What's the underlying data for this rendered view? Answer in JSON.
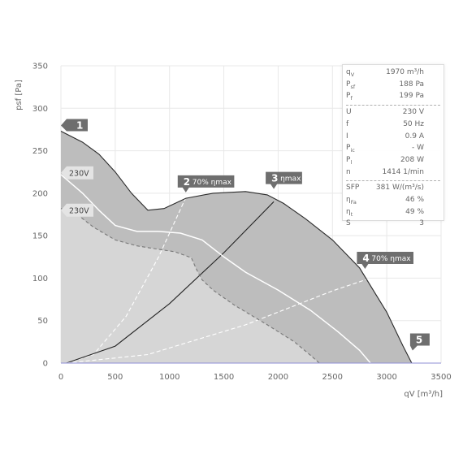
{
  "chart_data": {
    "type": "line",
    "xlabel": "qV [m³/h]",
    "ylabel": "psf [Pa]",
    "xlim": [
      0,
      3500
    ],
    "ylim": [
      0,
      350
    ],
    "xticks": [
      "0",
      "500",
      "1000",
      "1500",
      "2000",
      "2500",
      "3000",
      "3500"
    ],
    "yticks": [
      "0",
      "50",
      "100",
      "150",
      "200",
      "250",
      "300",
      "350"
    ],
    "grid": true,
    "series": [
      {
        "style": "boundary-max",
        "points": [
          [
            0,
            273
          ],
          [
            200,
            260
          ],
          [
            350,
            246
          ],
          [
            500,
            225
          ],
          [
            650,
            200
          ],
          [
            800,
            180
          ],
          [
            950,
            182
          ],
          [
            1150,
            194
          ],
          [
            1400,
            200
          ],
          [
            1700,
            202
          ],
          [
            1900,
            198
          ],
          [
            2050,
            188
          ],
          [
            2250,
            170
          ],
          [
            2500,
            145
          ],
          [
            2750,
            112
          ],
          [
            3000,
            60
          ],
          [
            3150,
            20
          ],
          [
            3230,
            0
          ]
        ]
      },
      {
        "style": "boundary-min",
        "points": [
          [
            0,
            182
          ],
          [
            150,
            175
          ],
          [
            300,
            160
          ],
          [
            500,
            145
          ],
          [
            700,
            138
          ],
          [
            900,
            134
          ],
          [
            1050,
            131
          ],
          [
            1200,
            124
          ],
          [
            1250,
            110
          ],
          [
            1300,
            98
          ],
          [
            1400,
            86
          ],
          [
            1600,
            68
          ],
          [
            1900,
            45
          ],
          [
            2150,
            25
          ],
          [
            2300,
            9
          ],
          [
            2380,
            0
          ]
        ]
      },
      {
        "style": "operating-230V",
        "points": [
          [
            0,
            222
          ],
          [
            200,
            200
          ],
          [
            350,
            180
          ],
          [
            500,
            162
          ],
          [
            700,
            155
          ],
          [
            900,
            155
          ],
          [
            1100,
            153
          ],
          [
            1300,
            145
          ],
          [
            1500,
            125
          ],
          [
            1700,
            107
          ],
          [
            2000,
            86
          ],
          [
            2300,
            62
          ],
          [
            2550,
            37
          ],
          [
            2750,
            15
          ],
          [
            2850,
            0
          ]
        ]
      }
    ],
    "efficiency_curves": [
      {
        "label": "70% ηmax",
        "points": [
          [
            50,
            0
          ],
          [
            300,
            10
          ],
          [
            600,
            55
          ],
          [
            900,
            125
          ],
          [
            1150,
            195
          ]
        ]
      },
      {
        "label": "ηmax",
        "points": [
          [
            50,
            0
          ],
          [
            500,
            20
          ],
          [
            1000,
            70
          ],
          [
            1500,
            130
          ],
          [
            1960,
            190
          ]
        ]
      },
      {
        "label": "70% ηmax",
        "points": [
          [
            50,
            0
          ],
          [
            800,
            10
          ],
          [
            1700,
            45
          ],
          [
            2500,
            85
          ],
          [
            2850,
            100
          ]
        ]
      }
    ],
    "zero_line_color": "#8f8fd6",
    "markers": [
      {
        "id": "1",
        "x": 0,
        "y": 273
      },
      {
        "id": "2",
        "text": "70% ηmax",
        "x": 1150,
        "y": 200
      },
      {
        "id": "3",
        "text": "ηmax",
        "x": 1960,
        "y": 204
      },
      {
        "id": "4",
        "text": "70% ηmax",
        "x": 2800,
        "y": 110
      },
      {
        "id": "5",
        "x": 3230,
        "y": 10
      }
    ],
    "curve_labels": [
      {
        "text": "230V",
        "x": 0,
        "y": 224
      },
      {
        "text": "230V",
        "x": 0,
        "y": 180
      }
    ],
    "colors": {
      "light_fill": "#d6d6d6",
      "dark_fill": "#bdbdbd",
      "marker": "#6e6e6e",
      "curve_label": "#e4e4e4"
    }
  },
  "info_panel": {
    "groups": [
      [
        {
          "sym": "q",
          "sub": "V",
          "value": "1970 m³/h"
        },
        {
          "sym": "P",
          "sub": "sf",
          "value": "188 Pa"
        },
        {
          "sym": "P",
          "sub": "f",
          "value": "199 Pa"
        }
      ],
      [
        {
          "sym": "U",
          "sub": "",
          "value": "230 V"
        },
        {
          "sym": "f",
          "sub": "",
          "value": "50 Hz"
        },
        {
          "sym": "I",
          "sub": "",
          "value": "0.9 A"
        },
        {
          "sym": "P",
          "sub": "ic",
          "value": "- W"
        },
        {
          "sym": "P",
          "sub": "l",
          "value": "208 W"
        },
        {
          "sym": "n",
          "sub": "",
          "value": "1414 1/min"
        }
      ],
      [
        {
          "sym": "SFP",
          "sub": "",
          "value": "381 W/(m³/s)"
        },
        {
          "sym": "η",
          "sub": "Fa",
          "value": "46 %"
        },
        {
          "sym": "η",
          "sub": "t",
          "value": "49 %"
        },
        {
          "sym": "S",
          "sub": "",
          "value": "3"
        }
      ]
    ]
  }
}
